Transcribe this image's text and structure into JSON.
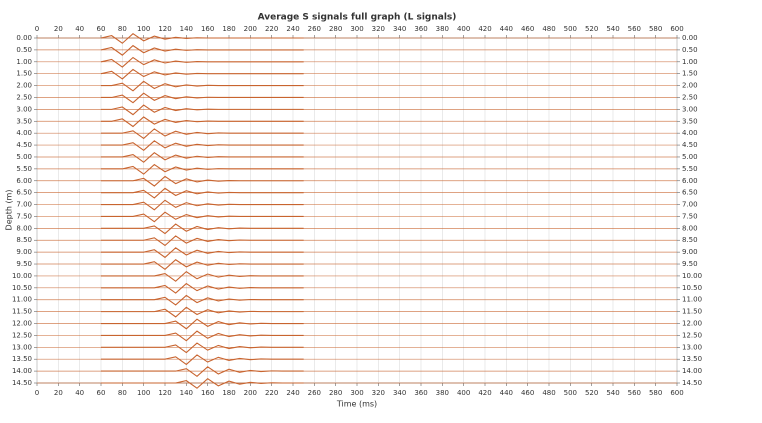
{
  "chart_data": {
    "type": "wiggle",
    "title": "Average S signals full graph (L signals)",
    "xlabel": "Time (ms)",
    "ylabel": "Depth (m)",
    "xlim": [
      0,
      600
    ],
    "ylim": [
      0,
      14.5
    ],
    "grid": true,
    "color": "#c8642f",
    "xticks": [
      0,
      20,
      40,
      60,
      80,
      100,
      120,
      140,
      160,
      180,
      200,
      220,
      240,
      260,
      280,
      300,
      320,
      340,
      360,
      380,
      400,
      420,
      440,
      460,
      480,
      500,
      520,
      540,
      560,
      580,
      600
    ],
    "yticks": [
      {
        "value": 0,
        "label": "0.00"
      },
      {
        "value": 0.5,
        "label": "0.50"
      },
      {
        "value": 1,
        "label": "1.00"
      },
      {
        "value": 1.5,
        "label": "1.50"
      },
      {
        "value": 2,
        "label": "2.00"
      },
      {
        "value": 2.5,
        "label": "2.50"
      },
      {
        "value": 3,
        "label": "3.00"
      },
      {
        "value": 3.5,
        "label": "3.50"
      },
      {
        "value": 4,
        "label": "4.00"
      },
      {
        "value": 4.5,
        "label": "4.50"
      },
      {
        "value": 5,
        "label": "5.00"
      },
      {
        "value": 5.5,
        "label": "5.50"
      },
      {
        "value": 6,
        "label": "6.00"
      },
      {
        "value": 6.5,
        "label": "6.50"
      },
      {
        "value": 7,
        "label": "7.00"
      },
      {
        "value": 7.5,
        "label": "7.50"
      },
      {
        "value": 8,
        "label": "8.00"
      },
      {
        "value": 8.5,
        "label": "8.50"
      },
      {
        "value": 9,
        "label": "9.00"
      },
      {
        "value": 9.5,
        "label": "9.50"
      },
      {
        "value": 10,
        "label": "10.00"
      },
      {
        "value": 10.5,
        "label": "10.50"
      },
      {
        "value": 11,
        "label": "11.00"
      },
      {
        "value": 11.5,
        "label": "11.50"
      },
      {
        "value": 12,
        "label": "12.00"
      },
      {
        "value": 12.5,
        "label": "12.50"
      },
      {
        "value": 13,
        "label": "13.00"
      },
      {
        "value": 13.5,
        "label": "13.50"
      },
      {
        "value": 14,
        "label": "14.00"
      },
      {
        "value": 14.5,
        "label": "14.50"
      }
    ],
    "x": [
      60,
      70,
      80,
      90,
      100,
      110,
      120,
      130,
      140,
      150,
      160,
      170,
      180,
      190,
      200,
      210,
      220,
      230,
      240,
      250
    ],
    "series": [
      {
        "values": [
          0,
          0.1,
          -0.22,
          0.18,
          -0.12,
          0.08,
          -0.05,
          0.03,
          -0.02,
          0.01,
          0,
          0,
          0,
          0,
          0,
          0,
          0,
          0,
          0,
          0
        ]
      },
      {
        "values": [
          0,
          0.1,
          -0.22,
          0.18,
          -0.12,
          0.08,
          -0.05,
          0.03,
          -0.02,
          0.01,
          0,
          0,
          0,
          0,
          0,
          0,
          0,
          0,
          0,
          0
        ]
      },
      {
        "values": [
          0,
          0.1,
          -0.22,
          0.18,
          -0.12,
          0.08,
          -0.05,
          0.03,
          -0.02,
          0.01,
          0,
          0,
          0,
          0,
          0,
          0,
          0,
          0,
          0,
          0
        ]
      },
      {
        "values": [
          0,
          0.1,
          -0.22,
          0.18,
          -0.12,
          0.08,
          -0.05,
          0.03,
          -0.02,
          0.01,
          0,
          0,
          0,
          0,
          0,
          0,
          0,
          0,
          0,
          0
        ]
      },
      {
        "values": [
          0,
          0,
          0.1,
          -0.22,
          0.18,
          -0.12,
          0.08,
          -0.05,
          0.03,
          -0.02,
          0.01,
          0,
          0,
          0,
          0,
          0,
          0,
          0,
          0,
          0
        ]
      },
      {
        "values": [
          0,
          0,
          0.1,
          -0.22,
          0.18,
          -0.12,
          0.08,
          -0.05,
          0.03,
          -0.02,
          0.01,
          0,
          0,
          0,
          0,
          0,
          0,
          0,
          0,
          0
        ]
      },
      {
        "values": [
          0,
          0,
          0.1,
          -0.22,
          0.18,
          -0.12,
          0.08,
          -0.05,
          0.03,
          -0.02,
          0.01,
          0,
          0,
          0,
          0,
          0,
          0,
          0,
          0,
          0
        ]
      },
      {
        "values": [
          0,
          0,
          0.1,
          -0.22,
          0.18,
          -0.12,
          0.08,
          -0.05,
          0.03,
          -0.02,
          0.01,
          0,
          0,
          0,
          0,
          0,
          0,
          0,
          0,
          0
        ]
      },
      {
        "values": [
          0,
          0,
          0,
          0.1,
          -0.22,
          0.18,
          -0.12,
          0.08,
          -0.05,
          0.03,
          -0.02,
          0.01,
          0,
          0,
          0,
          0,
          0,
          0,
          0,
          0
        ]
      },
      {
        "values": [
          0,
          0,
          0,
          0.1,
          -0.22,
          0.18,
          -0.12,
          0.08,
          -0.05,
          0.03,
          -0.02,
          0.01,
          0,
          0,
          0,
          0,
          0,
          0,
          0,
          0
        ]
      },
      {
        "values": [
          0,
          0,
          0,
          0.1,
          -0.22,
          0.18,
          -0.12,
          0.08,
          -0.05,
          0.03,
          -0.02,
          0.01,
          0,
          0,
          0,
          0,
          0,
          0,
          0,
          0
        ]
      },
      {
        "values": [
          0,
          0,
          0,
          0.1,
          -0.22,
          0.18,
          -0.12,
          0.08,
          -0.05,
          0.03,
          -0.02,
          0.01,
          0,
          0,
          0,
          0,
          0,
          0,
          0,
          0
        ]
      },
      {
        "values": [
          0,
          0,
          0,
          0,
          0.1,
          -0.22,
          0.18,
          -0.12,
          0.08,
          -0.05,
          0.03,
          -0.02,
          0.01,
          0,
          0,
          0,
          0,
          0,
          0,
          0
        ]
      },
      {
        "values": [
          0,
          0,
          0,
          0,
          0.1,
          -0.22,
          0.18,
          -0.12,
          0.08,
          -0.05,
          0.03,
          -0.02,
          0.01,
          0,
          0,
          0,
          0,
          0,
          0,
          0
        ]
      },
      {
        "values": [
          0,
          0,
          0,
          0,
          0.1,
          -0.22,
          0.18,
          -0.12,
          0.08,
          -0.05,
          0.03,
          -0.02,
          0.01,
          0,
          0,
          0,
          0,
          0,
          0,
          0
        ]
      },
      {
        "values": [
          0,
          0,
          0,
          0,
          0.1,
          -0.22,
          0.18,
          -0.12,
          0.08,
          -0.05,
          0.03,
          -0.02,
          0.01,
          0,
          0,
          0,
          0,
          0,
          0,
          0
        ]
      },
      {
        "values": [
          0,
          0,
          0,
          0,
          0,
          0.1,
          -0.22,
          0.18,
          -0.12,
          0.08,
          -0.05,
          0.03,
          -0.02,
          0.01,
          0,
          0,
          0,
          0,
          0,
          0
        ]
      },
      {
        "values": [
          0,
          0,
          0,
          0,
          0,
          0.1,
          -0.22,
          0.18,
          -0.12,
          0.08,
          -0.05,
          0.03,
          -0.02,
          0.01,
          0,
          0,
          0,
          0,
          0,
          0
        ]
      },
      {
        "values": [
          0,
          0,
          0,
          0,
          0,
          0.1,
          -0.22,
          0.18,
          -0.12,
          0.08,
          -0.05,
          0.03,
          -0.02,
          0.01,
          0,
          0,
          0,
          0,
          0,
          0
        ]
      },
      {
        "values": [
          0,
          0,
          0,
          0,
          0,
          0.1,
          -0.22,
          0.18,
          -0.12,
          0.08,
          -0.05,
          0.03,
          -0.02,
          0.01,
          0,
          0,
          0,
          0,
          0,
          0
        ]
      },
      {
        "values": [
          0,
          0,
          0,
          0,
          0,
          0,
          0.1,
          -0.22,
          0.18,
          -0.12,
          0.08,
          -0.05,
          0.03,
          -0.02,
          0.01,
          0,
          0,
          0,
          0,
          0
        ]
      },
      {
        "values": [
          0,
          0,
          0,
          0,
          0,
          0,
          0.1,
          -0.22,
          0.18,
          -0.12,
          0.08,
          -0.05,
          0.03,
          -0.02,
          0.01,
          0,
          0,
          0,
          0,
          0
        ]
      },
      {
        "values": [
          0,
          0,
          0,
          0,
          0,
          0,
          0.1,
          -0.22,
          0.18,
          -0.12,
          0.08,
          -0.05,
          0.03,
          -0.02,
          0.01,
          0,
          0,
          0,
          0,
          0
        ]
      },
      {
        "values": [
          0,
          0,
          0,
          0,
          0,
          0,
          0.1,
          -0.22,
          0.18,
          -0.12,
          0.08,
          -0.05,
          0.03,
          -0.02,
          0.01,
          0,
          0,
          0,
          0,
          0
        ]
      },
      {
        "values": [
          0,
          0,
          0,
          0,
          0,
          0,
          0,
          0.1,
          -0.22,
          0.18,
          -0.12,
          0.08,
          -0.05,
          0.03,
          -0.02,
          0.01,
          0,
          0,
          0,
          0
        ]
      },
      {
        "values": [
          0,
          0,
          0,
          0,
          0,
          0,
          0,
          0.1,
          -0.22,
          0.18,
          -0.12,
          0.08,
          -0.05,
          0.03,
          -0.02,
          0.01,
          0,
          0,
          0,
          0
        ]
      },
      {
        "values": [
          0,
          0,
          0,
          0,
          0,
          0,
          0,
          0.1,
          -0.22,
          0.18,
          -0.12,
          0.08,
          -0.05,
          0.03,
          -0.02,
          0.01,
          0,
          0,
          0,
          0
        ]
      },
      {
        "values": [
          0,
          0,
          0,
          0,
          0,
          0,
          0,
          0.1,
          -0.22,
          0.18,
          -0.12,
          0.08,
          -0.05,
          0.03,
          -0.02,
          0.01,
          0,
          0,
          0,
          0
        ]
      },
      {
        "values": [
          0,
          0,
          0,
          0,
          0,
          0,
          0,
          0,
          0.1,
          -0.22,
          0.18,
          -0.12,
          0.08,
          -0.05,
          0.03,
          -0.02,
          0.01,
          0,
          0,
          0
        ]
      },
      {
        "values": [
          0,
          0,
          0,
          0,
          0,
          0,
          0,
          0,
          0.1,
          -0.22,
          0.18,
          -0.12,
          0.08,
          -0.05,
          0.03,
          -0.02,
          0.01,
          0,
          0,
          0
        ]
      }
    ]
  }
}
